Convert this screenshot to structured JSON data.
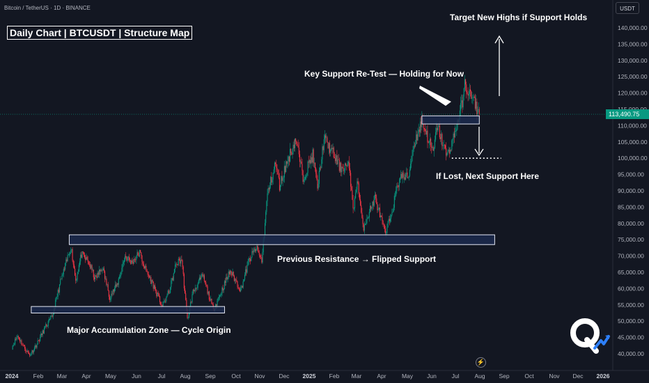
{
  "header": {
    "symbol_line": "Bitcoin / TetherUS · 1D · BINANCE",
    "currency": "USDT"
  },
  "title": "Daily Chart | BTCUSDT | Structure Map",
  "annotations": {
    "target": "Target New Highs if Support Holds",
    "key_support": "Key Support Re-Test — Holding for Now",
    "if_lost": "If Lost, Next Support Here",
    "prev_resistance": "Previous Resistance → Flipped Support",
    "accumulation": "Major Accumulation Zone — Cycle Origin"
  },
  "last_price": "113,490.75",
  "colors": {
    "background": "#131722",
    "up": "#089981",
    "down": "#f23645",
    "zone_fill": "#1c2a4e",
    "zone_border": "#e6e9f5",
    "price_line": "#089981"
  },
  "chart_data": {
    "type": "candlestick",
    "title": "Daily Chart | BTCUSDT | Structure Map",
    "xlabel": "",
    "ylabel": "",
    "ylim": [
      37000,
      150000
    ],
    "yticks": [
      "140,000.00",
      "135,000.00",
      "130,000.00",
      "125,000.00",
      "120,000.00",
      "115,000.00",
      "110,000.00",
      "105,000.00",
      "100,000.00",
      "95,000.00",
      "90,000.00",
      "85,000.00",
      "80,000.00",
      "75,000.00",
      "70,000.00",
      "65,000.00",
      "60,000.00",
      "55,000.00",
      "50,000.00",
      "45,000.00",
      "40,000.00"
    ],
    "xticks": [
      "2024",
      "Feb",
      "Mar",
      "Apr",
      "May",
      "Jun",
      "Jul",
      "Aug",
      "Sep",
      "Oct",
      "Nov",
      "Dec",
      "2025",
      "Feb",
      "Mar",
      "Apr",
      "May",
      "Jun",
      "Jul",
      "Aug",
      "Sep",
      "Oct",
      "Nov",
      "Dec",
      "2026"
    ],
    "xticks_bold": [
      "2024",
      "2025",
      "2026"
    ],
    "x_range": [
      "2024-01-01",
      "2026-01-01"
    ],
    "price_path": [
      [
        "2024-01-01",
        42000
      ],
      [
        "2024-01-08",
        45500
      ],
      [
        "2024-01-15",
        42500
      ],
      [
        "2024-01-23",
        39500
      ],
      [
        "2024-02-01",
        43000
      ],
      [
        "2024-02-10",
        47500
      ],
      [
        "2024-02-20",
        51500
      ],
      [
        "2024-03-01",
        62000
      ],
      [
        "2024-03-06",
        66000
      ],
      [
        "2024-03-14",
        73000
      ],
      [
        "2024-03-20",
        62500
      ],
      [
        "2024-03-27",
        70500
      ],
      [
        "2024-04-05",
        68000
      ],
      [
        "2024-04-13",
        63000
      ],
      [
        "2024-04-22",
        66500
      ],
      [
        "2024-05-01",
        57500
      ],
      [
        "2024-05-10",
        61000
      ],
      [
        "2024-05-20",
        70000
      ],
      [
        "2024-05-28",
        68000
      ],
      [
        "2024-06-07",
        71000
      ],
      [
        "2024-06-14",
        66000
      ],
      [
        "2024-06-24",
        61000
      ],
      [
        "2024-07-05",
        54500
      ],
      [
        "2024-07-14",
        59500
      ],
      [
        "2024-07-22",
        67500
      ],
      [
        "2024-07-29",
        69000
      ],
      [
        "2024-08-05",
        50500
      ],
      [
        "2024-08-12",
        59000
      ],
      [
        "2024-08-24",
        64000
      ],
      [
        "2024-09-06",
        53500
      ],
      [
        "2024-09-15",
        58500
      ],
      [
        "2024-09-27",
        65500
      ],
      [
        "2024-10-10",
        59500
      ],
      [
        "2024-10-20",
        68500
      ],
      [
        "2024-10-29",
        72500
      ],
      [
        "2024-11-05",
        68500
      ],
      [
        "2024-11-12",
        89000
      ],
      [
        "2024-11-22",
        98500
      ],
      [
        "2024-11-27",
        91500
      ],
      [
        "2024-12-05",
        98000
      ],
      [
        "2024-12-17",
        106000
      ],
      [
        "2024-12-26",
        94000
      ],
      [
        "2025-01-07",
        101000
      ],
      [
        "2025-01-13",
        91000
      ],
      [
        "2025-01-21",
        106000
      ],
      [
        "2025-01-31",
        102000
      ],
      [
        "2025-02-10",
        97000
      ],
      [
        "2025-02-20",
        98000
      ],
      [
        "2025-02-27",
        84000
      ],
      [
        "2025-03-03",
        94000
      ],
      [
        "2025-03-10",
        78500
      ],
      [
        "2025-03-25",
        88000
      ],
      [
        "2025-04-07",
        76500
      ],
      [
        "2025-04-15",
        84000
      ],
      [
        "2025-04-25",
        94500
      ],
      [
        "2025-05-05",
        94000
      ],
      [
        "2025-05-12",
        104000
      ],
      [
        "2025-05-22",
        111500
      ],
      [
        "2025-06-05",
        101500
      ],
      [
        "2025-06-10",
        110000
      ],
      [
        "2025-06-22",
        100500
      ],
      [
        "2025-07-01",
        107000
      ],
      [
        "2025-07-10",
        116000
      ],
      [
        "2025-07-14",
        122500
      ],
      [
        "2025-07-25",
        117500
      ],
      [
        "2025-08-01",
        113490.75
      ]
    ],
    "zones": [
      {
        "label": "Major Accumulation Zone — Cycle Origin",
        "low": 52500,
        "high": 54500,
        "from": "2024-01-25",
        "to": "2024-09-20"
      },
      {
        "label": "Previous Resistance → Flipped Support",
        "low": 73500,
        "high": 76500,
        "from": "2024-03-12",
        "to": "2025-08-20"
      },
      {
        "label": "Key Support Re-Test — Holding for Now",
        "low": 110500,
        "high": 113000,
        "from": "2025-05-22",
        "to": "2025-08-01"
      }
    ],
    "next_support": 100000,
    "last_price": 113490.75,
    "legend": "none",
    "grid": false
  }
}
